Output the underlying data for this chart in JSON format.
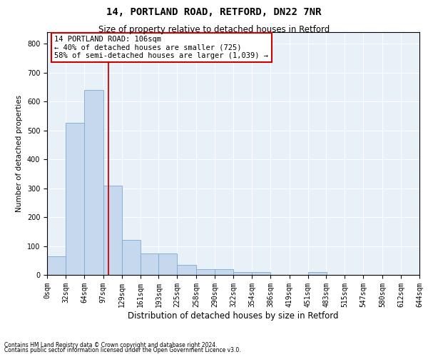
{
  "title_line1": "14, PORTLAND ROAD, RETFORD, DN22 7NR",
  "title_line2": "Size of property relative to detached houses in Retford",
  "xlabel": "Distribution of detached houses by size in Retford",
  "ylabel": "Number of detached properties",
  "footnote1": "Contains HM Land Registry data © Crown copyright and database right 2024.",
  "footnote2": "Contains public sector information licensed under the Open Government Licence v3.0.",
  "bar_color": "#c5d8ee",
  "bar_edge_color": "#7aaad0",
  "background_color": "#e8f0f8",
  "grid_color": "#ffffff",
  "red_line_color": "#cc0000",
  "annotation_box_color": "#cc0000",
  "annotation_text_line1": "14 PORTLAND ROAD: 106sqm",
  "annotation_text_line2": "← 40% of detached houses are smaller (725)",
  "annotation_text_line3": "58% of semi-detached houses are larger (1,039) →",
  "property_sqm": 106,
  "bin_edges": [
    0,
    32,
    64,
    97,
    129,
    161,
    193,
    225,
    258,
    290,
    322,
    354,
    386,
    419,
    451,
    483,
    515,
    547,
    580,
    612,
    644
  ],
  "bar_heights": [
    65,
    525,
    640,
    310,
    120,
    75,
    75,
    35,
    20,
    20,
    10,
    10,
    0,
    0,
    10,
    0,
    0,
    0,
    0,
    0
  ],
  "ylim": [
    0,
    840
  ],
  "yticks": [
    0,
    100,
    200,
    300,
    400,
    500,
    600,
    700,
    800
  ],
  "fig_width": 6.0,
  "fig_height": 5.0,
  "title1_fontsize": 10,
  "title2_fontsize": 8.5,
  "xlabel_fontsize": 8.5,
  "ylabel_fontsize": 7.5,
  "tick_fontsize": 7,
  "annot_fontsize": 7.5,
  "footnote_fontsize": 5.5
}
